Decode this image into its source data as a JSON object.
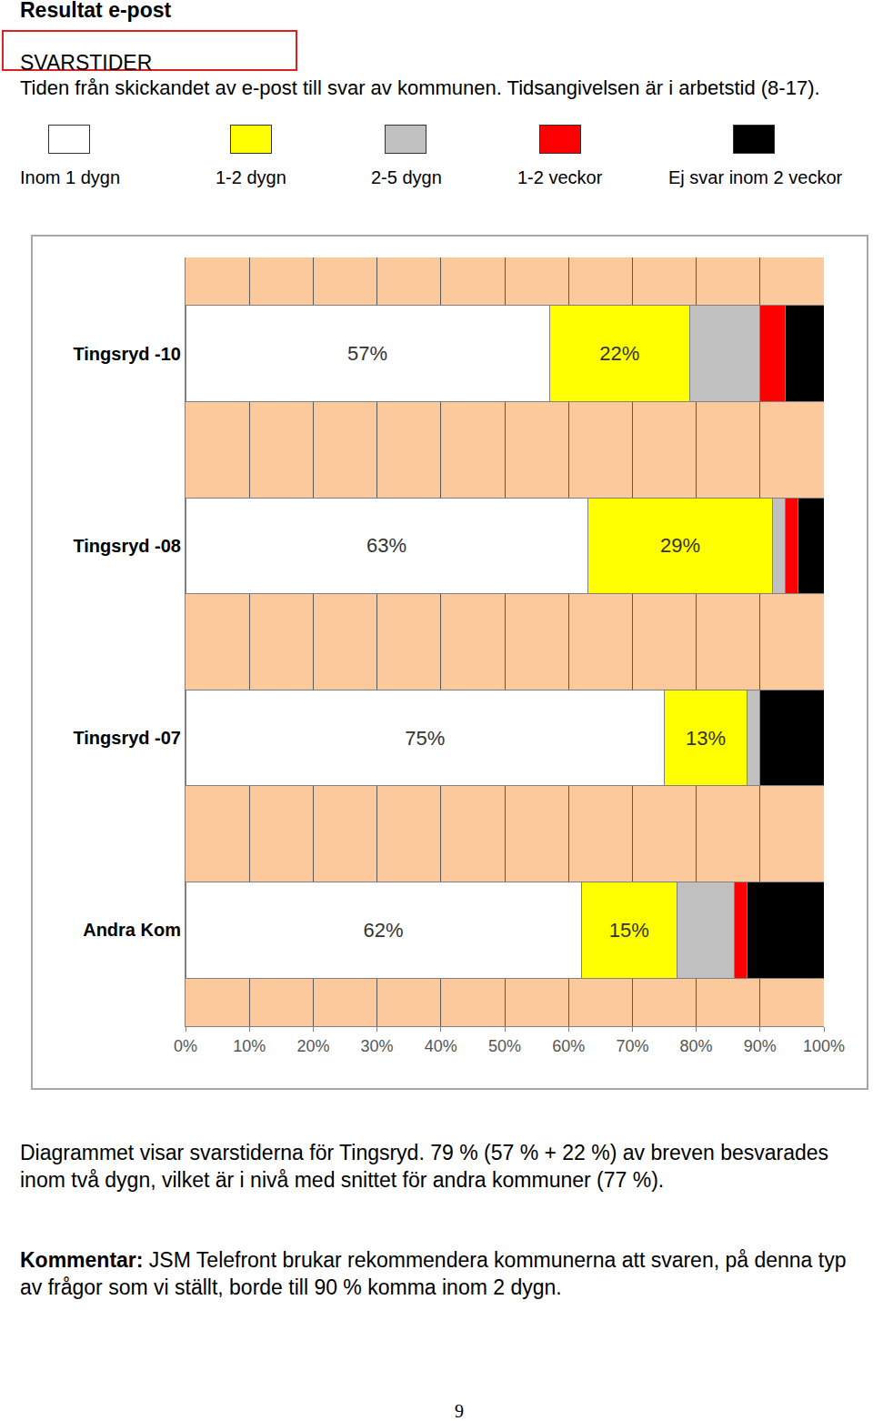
{
  "document": {
    "header": "Resultat e-post",
    "section": "SVARSTIDER",
    "intro": "Tiden från skickandet av e-post till svar av kommunen. Tidsangivelsen är i arbetstid (8-17).",
    "caption": "Diagrammet visar svarstiderna för Tingsryd. 79 % (57 % + 22 %) av breven besvarades inom två dygn, vilket är i nivå med snittet för andra kommuner (77 %).",
    "comment_label": "Kommentar:",
    "comment": "JSM Telefront brukar rekommendera kommunerna att svaren, på denna typ av frågor som vi ställt, borde till 90 % komma inom 2 dygn.",
    "page_number": "9"
  },
  "chart_data": {
    "type": "bar",
    "orientation": "horizontal",
    "stacked": true,
    "legend": "top",
    "grid": true,
    "categories": [
      "Tingsryd -10",
      "Tingsryd -08",
      "Tingsryd -07",
      "Andra Kom"
    ],
    "series": [
      {
        "name": "Inom 1 dygn",
        "color": "#ffffff",
        "values": [
          57,
          63,
          75,
          62
        ],
        "data_labels": true,
        "value_labels": [
          "57%",
          "63%",
          "75%",
          "62%"
        ]
      },
      {
        "name": "1-2 dygn",
        "color": "#ffff00",
        "values": [
          22,
          29,
          13,
          15
        ],
        "data_labels": true,
        "value_labels": [
          "22%",
          "29%",
          "13%",
          "15%"
        ]
      },
      {
        "name": "2-5 dygn",
        "color": "#c0c0c0",
        "values": [
          11,
          2,
          2,
          9
        ]
      },
      {
        "name": "1-2 veckor",
        "color": "#ff0000",
        "values": [
          4,
          2,
          0,
          2
        ]
      },
      {
        "name": "Ej svar inom 2 veckor",
        "color": "#000000",
        "values": [
          6,
          4,
          10,
          12
        ]
      }
    ],
    "xlim": [
      0,
      100
    ],
    "xticks": [
      {
        "value": 0,
        "label": "0%"
      },
      {
        "value": 10,
        "label": "10%"
      },
      {
        "value": 20,
        "label": "20%"
      },
      {
        "value": 30,
        "label": "30%"
      },
      {
        "value": 40,
        "label": "40%"
      },
      {
        "value": 50,
        "label": "50%"
      },
      {
        "value": 60,
        "label": "60%"
      },
      {
        "value": 70,
        "label": "70%"
      },
      {
        "value": 80,
        "label": "80%"
      },
      {
        "value": 90,
        "label": "90%"
      },
      {
        "value": 100,
        "label": "100%"
      }
    ]
  }
}
